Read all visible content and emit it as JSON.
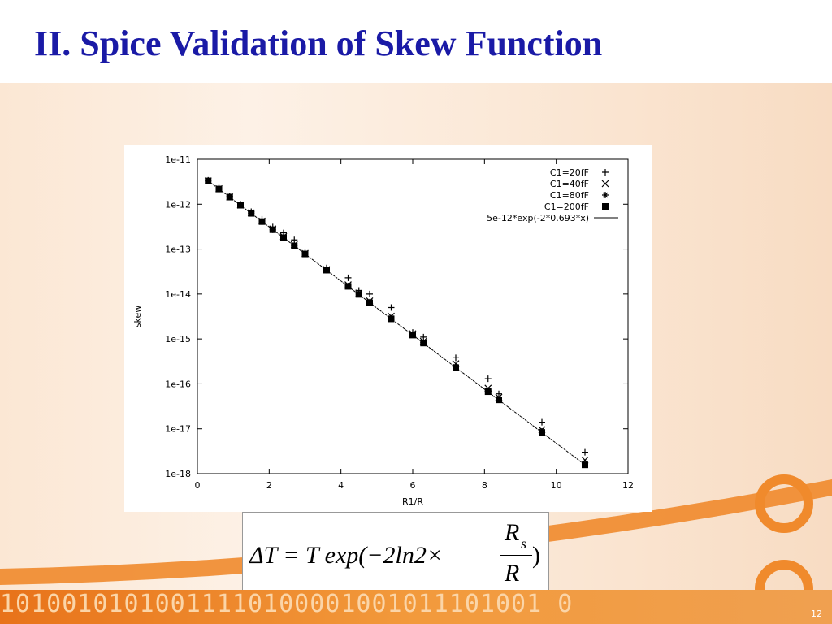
{
  "title": "II. Spice Validation of Skew Function",
  "formula": {
    "left": "ΔT = T exp(−2ln2×",
    "numerator": "R",
    "subscript": "s",
    "denominator": "R",
    "right": ")"
  },
  "footer_binary": "10100101010011110100001001011101001 0",
  "page_number": "12",
  "chart_data": {
    "type": "scatter",
    "xlabel": "R1/R",
    "ylabel": "skew",
    "log_y": true,
    "legend": "upper right",
    "xlim": [
      0,
      12
    ],
    "xticks": [
      0,
      2,
      4,
      6,
      8,
      10,
      12
    ],
    "ylim": [
      1e-18,
      1e-11
    ],
    "yticks": [
      {
        "value": 1e-18,
        "label": "1e-18"
      },
      {
        "value": 1e-17,
        "label": "1e-17"
      },
      {
        "value": 1e-16,
        "label": "1e-16"
      },
      {
        "value": 1e-15,
        "label": "1e-15"
      },
      {
        "value": 1e-14,
        "label": "1e-14"
      },
      {
        "value": 1e-13,
        "label": "1e-13"
      },
      {
        "value": 1e-12,
        "label": "1e-12"
      },
      {
        "value": 1e-11,
        "label": "1e-11"
      }
    ],
    "series": [
      {
        "name": "C1=20fF",
        "marker": "plus",
        "color": "#000000",
        "x": [
          0.3,
          0.6,
          0.9,
          1.2,
          1.5,
          1.8,
          2.1,
          2.4,
          2.7,
          3.0,
          3.6,
          4.2,
          4.5,
          4.8,
          5.4,
          6.0,
          6.3,
          7.2,
          8.1,
          8.4,
          9.6,
          10.8
        ],
        "values": [
          3.4e-12,
          2.3e-12,
          1.5e-12,
          1e-12,
          6.8e-13,
          4.6e-13,
          3.1e-13,
          2.3e-13,
          1.6e-13,
          8.5e-14,
          3.8e-14,
          2.3e-14,
          1.2e-14,
          1e-14,
          5e-15,
          1.4e-15,
          1.1e-15,
          3.8e-16,
          1.3e-16,
          6e-17,
          1.4e-17,
          3e-18
        ]
      },
      {
        "name": "C1=40fF",
        "marker": "cross",
        "color": "#000000",
        "x": [
          0.3,
          0.6,
          0.9,
          1.2,
          1.5,
          1.8,
          2.1,
          2.4,
          2.7,
          3.0,
          3.6,
          4.2,
          4.5,
          4.8,
          5.4,
          6.0,
          6.3,
          7.2,
          8.1,
          8.4,
          9.6,
          10.8
        ],
        "values": [
          3.3e-12,
          2.2e-12,
          1.45e-12,
          9.6e-13,
          6.4e-13,
          4.2e-13,
          2.8e-13,
          1.9e-13,
          1.25e-13,
          8e-14,
          3.5e-14,
          1.6e-14,
          1.05e-14,
          7e-15,
          3.2e-15,
          1.3e-15,
          8.8e-16,
          2.8e-16,
          8e-17,
          5e-17,
          9.5e-18,
          2e-18
        ]
      },
      {
        "name": "C1=80fF",
        "marker": "star",
        "color": "#000000",
        "x": [
          0.3,
          0.6,
          0.9,
          1.2,
          1.5,
          1.8,
          2.1,
          2.4,
          2.7,
          3.0,
          3.6,
          4.2,
          4.5,
          4.8,
          5.4,
          6.0,
          6.3,
          7.2,
          8.1,
          8.4,
          9.6,
          10.8
        ],
        "values": [
          3.3e-12,
          2.2e-12,
          1.44e-12,
          9.5e-13,
          6.3e-13,
          4.1e-13,
          2.7e-13,
          1.8e-13,
          1.2e-13,
          7.9e-14,
          3.4e-14,
          1.5e-14,
          1e-14,
          6.6e-15,
          2.9e-15,
          1.25e-15,
          8.3e-16,
          2.4e-16,
          7e-17,
          4.6e-17,
          8.7e-18,
          1.7e-18
        ]
      },
      {
        "name": "C1=200fF",
        "marker": "square",
        "color": "#000000",
        "x": [
          0.3,
          0.6,
          0.9,
          1.2,
          1.5,
          1.8,
          2.1,
          2.4,
          2.7,
          3.0,
          3.6,
          4.2,
          4.5,
          4.8,
          5.4,
          6.0,
          6.3,
          7.2,
          8.1,
          8.4,
          9.6,
          10.8
        ],
        "values": [
          3.3e-12,
          2.18e-12,
          1.44e-12,
          9.5e-13,
          6.25e-13,
          4.1e-13,
          2.7e-13,
          1.8e-13,
          1.18e-13,
          7.8e-14,
          3.4e-14,
          1.48e-14,
          9.8e-15,
          6.4e-15,
          2.8e-15,
          1.22e-15,
          8.1e-16,
          2.3e-16,
          6.7e-17,
          4.4e-17,
          8.3e-18,
          1.57e-18
        ]
      },
      {
        "name": "5e-12*exp(-2*0.693*x)",
        "marker": "line",
        "color": "#000000",
        "x": [
          0.3,
          10.8
        ],
        "values": [
          3.3e-12,
          1.57e-18
        ]
      }
    ]
  }
}
